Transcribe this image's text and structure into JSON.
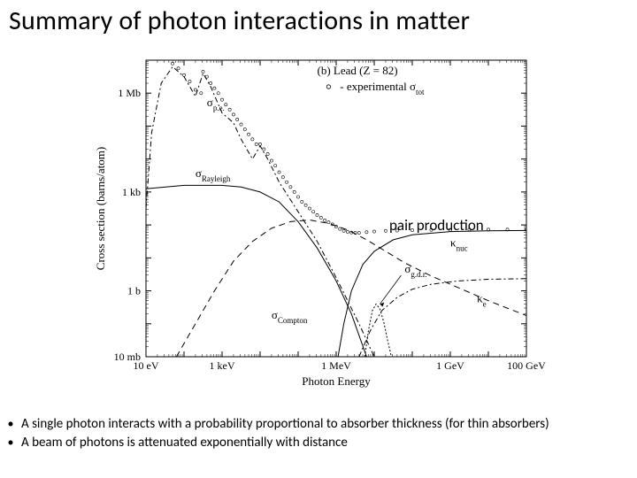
{
  "title": "Summary of photon interactions in matter",
  "annotation": {
    "pair_production": "pair production"
  },
  "bullets": [
    "A single photon interacts with a probability proportional to absorber thickness (for thin absorbers)",
    "A beam of photons is attenuated exponentially with distance"
  ],
  "chart": {
    "type": "line+scatter",
    "background_color": "#ffffff",
    "axis_color": "#000000",
    "grid": false,
    "header_text": "(b) Lead (Z = 82)",
    "legend_text": "○  - experimental σ_tot",
    "x_axis": {
      "label": "Photon Energy",
      "scale": "log",
      "min_exp": 1,
      "max_exp": 11,
      "tick_labels": [
        "10 eV",
        "1 keV",
        "1 MeV",
        "1 GeV",
        "100 GeV"
      ],
      "tick_exps": [
        1,
        3,
        6,
        9,
        11
      ],
      "fontsize": 13
    },
    "y_axis": {
      "label": "Cross section  (barns/atom)",
      "scale": "log",
      "min_exp": -2,
      "max_exp": 7,
      "tick_labels": [
        "10 mb",
        "1 b",
        "1 kb",
        "1 Mb"
      ],
      "tick_exps": [
        -2,
        0,
        3,
        6
      ],
      "fontsize": 13
    },
    "curves": {
      "sigma_pe": {
        "label": "σ_p.e.",
        "dash": "6,3,2,3",
        "color": "#000000",
        "width": 1,
        "points_logxy": [
          [
            1.0,
            2.5
          ],
          [
            1.15,
            4.8
          ],
          [
            1.4,
            6.3
          ],
          [
            1.7,
            6.8
          ],
          [
            2.0,
            6.5
          ],
          [
            2.3,
            5.9
          ],
          [
            2.5,
            6.6
          ],
          [
            2.7,
            6.2
          ],
          [
            3.0,
            5.4
          ],
          [
            3.3,
            5.1
          ],
          [
            3.5,
            4.6
          ],
          [
            3.8,
            4.0
          ],
          [
            4.0,
            4.4
          ],
          [
            4.2,
            4.0
          ],
          [
            4.5,
            3.3
          ],
          [
            5.0,
            2.4
          ],
          [
            5.5,
            1.5
          ],
          [
            6.0,
            0.4
          ],
          [
            6.3,
            -0.3
          ],
          [
            6.6,
            -1.0
          ],
          [
            7.0,
            -2.0
          ]
        ]
      },
      "sigma_rayleigh": {
        "label": "σ_Rayleigh",
        "dash": "none",
        "color": "#000000",
        "width": 1,
        "points_logxy": [
          [
            1.0,
            3.1
          ],
          [
            2.0,
            3.2
          ],
          [
            3.0,
            3.2
          ],
          [
            3.5,
            3.15
          ],
          [
            4.0,
            3.0
          ],
          [
            4.5,
            2.7
          ],
          [
            5.0,
            2.1
          ],
          [
            5.5,
            1.3
          ],
          [
            6.0,
            0.3
          ],
          [
            6.4,
            -0.7
          ],
          [
            6.8,
            -2.0
          ]
        ]
      },
      "sigma_compton": {
        "label": "σ_Compton",
        "dash": "7,5",
        "color": "#000000",
        "width": 1,
        "points_logxy": [
          [
            1.8,
            -2.0
          ],
          [
            2.3,
            -1.0
          ],
          [
            2.8,
            0.0
          ],
          [
            3.3,
            0.9
          ],
          [
            3.8,
            1.5
          ],
          [
            4.3,
            1.9
          ],
          [
            4.8,
            2.1
          ],
          [
            5.3,
            2.15
          ],
          [
            5.8,
            2.05
          ],
          [
            6.3,
            1.85
          ],
          [
            6.8,
            1.55
          ],
          [
            7.3,
            1.2
          ],
          [
            7.8,
            0.85
          ],
          [
            8.5,
            0.45
          ],
          [
            9.2,
            0.1
          ],
          [
            10.0,
            -0.3
          ],
          [
            11.0,
            -0.75
          ]
        ]
      },
      "kappa_nuc": {
        "label": "κ_nuc",
        "dash": "none",
        "color": "#000000",
        "width": 1,
        "points_logxy": [
          [
            6.05,
            -2.0
          ],
          [
            6.2,
            -1.0
          ],
          [
            6.4,
            0.0
          ],
          [
            6.7,
            0.8
          ],
          [
            7.0,
            1.2
          ],
          [
            7.5,
            1.55
          ],
          [
            8.0,
            1.7
          ],
          [
            9.0,
            1.8
          ],
          [
            10.0,
            1.82
          ],
          [
            11.0,
            1.83
          ]
        ]
      },
      "kappa_e": {
        "label": "κ_e",
        "dash": "6,3,2,3",
        "color": "#000000",
        "width": 1,
        "points_logxy": [
          [
            6.6,
            -2.0
          ],
          [
            6.9,
            -1.2
          ],
          [
            7.2,
            -0.6
          ],
          [
            7.6,
            -0.2
          ],
          [
            8.0,
            0.05
          ],
          [
            8.5,
            0.2
          ],
          [
            9.2,
            0.3
          ],
          [
            10.0,
            0.35
          ],
          [
            11.0,
            0.37
          ]
        ]
      },
      "sigma_gdr": {
        "label": "σ_g.d.r.",
        "dash": "2,2",
        "color": "#000000",
        "width": 1,
        "points_logxy": [
          [
            6.75,
            -2.0
          ],
          [
            6.85,
            -1.2
          ],
          [
            6.95,
            -0.6
          ],
          [
            7.05,
            -0.4
          ],
          [
            7.15,
            -0.55
          ],
          [
            7.25,
            -0.95
          ],
          [
            7.35,
            -1.5
          ],
          [
            7.45,
            -2.0
          ]
        ]
      }
    },
    "sigma_tot_points_logxy": [
      [
        1.7,
        6.9
      ],
      [
        1.85,
        6.75
      ],
      [
        2.0,
        6.55
      ],
      [
        2.15,
        6.35
      ],
      [
        2.3,
        6.1
      ],
      [
        2.45,
        6.0
      ],
      [
        2.5,
        6.65
      ],
      [
        2.6,
        6.5
      ],
      [
        2.7,
        6.3
      ],
      [
        2.8,
        6.15
      ],
      [
        2.9,
        6.0
      ],
      [
        3.0,
        5.8
      ],
      [
        3.1,
        5.65
      ],
      [
        3.2,
        5.5
      ],
      [
        3.3,
        5.35
      ],
      [
        3.4,
        5.2
      ],
      [
        3.5,
        5.05
      ],
      [
        3.6,
        4.9
      ],
      [
        3.7,
        4.75
      ],
      [
        3.8,
        4.6
      ],
      [
        3.9,
        4.45
      ],
      [
        4.0,
        4.45
      ],
      [
        4.1,
        4.3
      ],
      [
        4.2,
        4.15
      ],
      [
        4.3,
        3.95
      ],
      [
        4.4,
        3.8
      ],
      [
        4.5,
        3.6
      ],
      [
        4.6,
        3.45
      ],
      [
        4.7,
        3.3
      ],
      [
        4.8,
        3.15
      ],
      [
        4.9,
        3.0
      ],
      [
        5.0,
        2.85
      ],
      [
        5.1,
        2.7
      ],
      [
        5.2,
        2.6
      ],
      [
        5.3,
        2.5
      ],
      [
        5.4,
        2.4
      ],
      [
        5.5,
        2.3
      ],
      [
        5.6,
        2.22
      ],
      [
        5.7,
        2.14
      ],
      [
        5.8,
        2.08
      ],
      [
        5.9,
        2.02
      ],
      [
        6.0,
        1.95
      ],
      [
        6.1,
        1.88
      ],
      [
        6.2,
        1.82
      ],
      [
        6.3,
        1.79
      ],
      [
        6.4,
        1.77
      ],
      [
        6.5,
        1.76
      ],
      [
        6.6,
        1.76
      ],
      [
        6.8,
        1.78
      ],
      [
        7.0,
        1.8
      ],
      [
        7.3,
        1.82
      ],
      [
        7.6,
        1.83
      ],
      [
        8.0,
        1.84
      ],
      [
        8.5,
        1.85
      ],
      [
        9.0,
        1.85
      ],
      [
        9.5,
        1.86
      ],
      [
        10.0,
        1.86
      ],
      [
        10.5,
        1.86
      ],
      [
        11.0,
        1.86
      ]
    ],
    "curve_label_positions": {
      "sigma_pe": {
        "logx": 2.6,
        "logy": 5.6,
        "text": "σ",
        "sub": "p.e."
      },
      "sigma_rayleigh": {
        "logx": 2.3,
        "logy": 3.45,
        "text": "σ",
        "sub": "Rayleigh"
      },
      "sigma_compton": {
        "logx": 4.3,
        "logy": -0.85,
        "text": "σ",
        "sub": "Compton"
      },
      "kappa_nuc": {
        "logx": 9.0,
        "logy": 1.35,
        "text": "κ",
        "sub": "nuc"
      },
      "kappa_e": {
        "logx": 9.7,
        "logy": -0.35,
        "text": "κ",
        "sub": "e"
      },
      "sigma_gdr": {
        "logx": 7.8,
        "logy": 0.55,
        "text": "σ",
        "sub": "g.d.r.",
        "arrow_to": {
          "logx": 7.15,
          "logy": -0.4
        }
      }
    },
    "marker": {
      "radius": 1.6,
      "stroke": "#000000",
      "fill": "none",
      "stroke_width": 0.6
    }
  }
}
